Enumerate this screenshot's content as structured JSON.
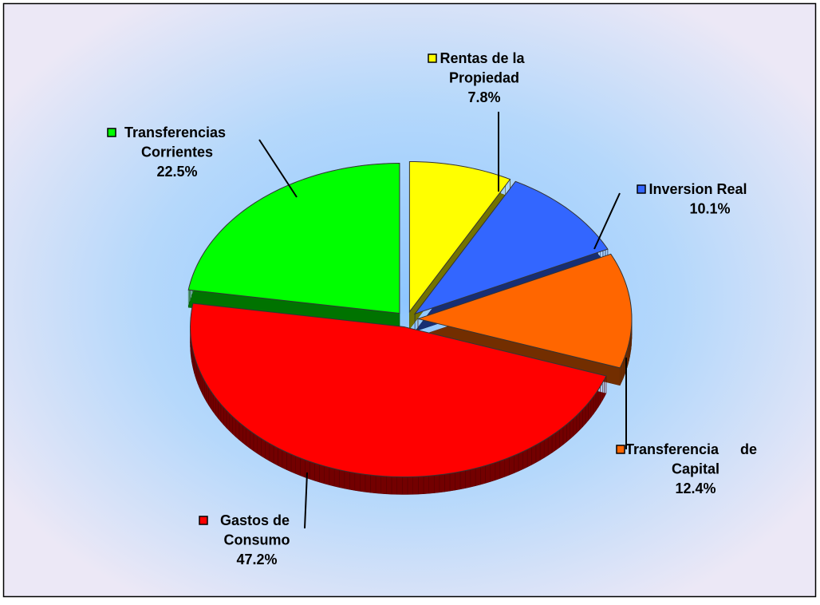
{
  "chart_data": {
    "type": "pie3d",
    "categories": [
      "Rentas de la Propiedad",
      "Inversion Real",
      "Transferencia de Capital",
      "Gastos de Consumo",
      "Transferencias Corrientes"
    ],
    "values": [
      7.8,
      10.1,
      12.4,
      47.2,
      22.5
    ],
    "value_labels": [
      "7.8%",
      "10.1%",
      "12.4%",
      "47.2%",
      "22.5%"
    ],
    "colors": [
      "#ffff00",
      "#3366ff",
      "#ff6600",
      "#ff0000",
      "#00ff00"
    ]
  }
}
